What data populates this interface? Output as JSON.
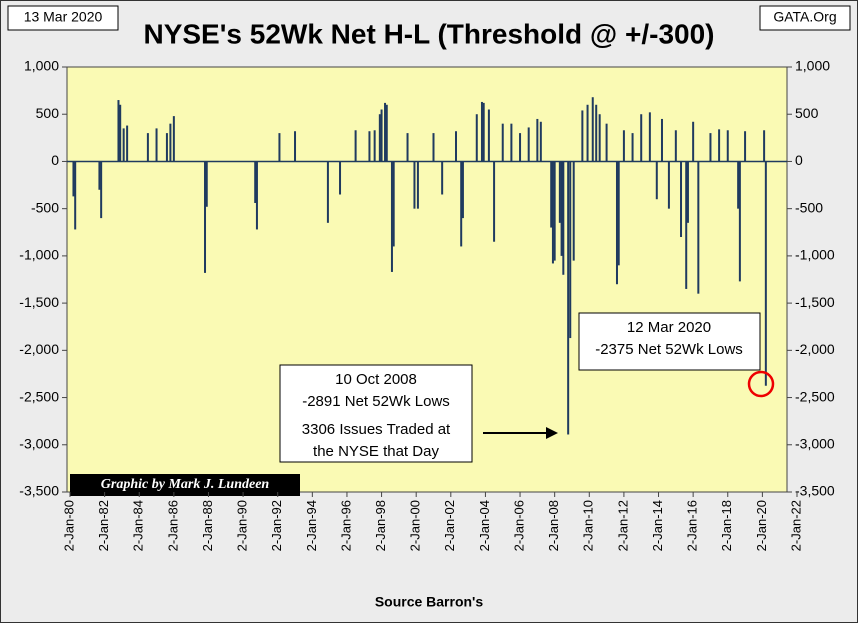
{
  "chart_data": {
    "type": "bar",
    "title": "NYSE's 52Wk Net H-L (Threshold @ +/-300)",
    "date_label": "13 Mar 2020",
    "source_site": "GATA.Org",
    "credit": "Graphic by Mark J. Lundeen",
    "x_label": "Source Barron's",
    "annotations": [
      {
        "lines": [
          "10 Oct 2008",
          "-2891 Net 52Wk Lows",
          "3306 Issues Traded at",
          "the NYSE that Day"
        ]
      },
      {
        "lines": [
          "12 Mar 2020",
          "-2375 Net 52Wk Lows"
        ]
      }
    ],
    "color": "#1f3a5f",
    "background": "#fafab4",
    "x": [
      1980.2,
      1980.3,
      1981.7,
      1981.8,
      1982.8,
      1982.9,
      1983.1,
      1983.3,
      1984.5,
      1985.0,
      1985.6,
      1985.8,
      1986.0,
      1987.8,
      1987.9,
      1990.7,
      1990.8,
      1992.1,
      1993.0,
      1994.9,
      1995.6,
      1996.5,
      1997.3,
      1997.6,
      1997.9,
      1998.0,
      1998.2,
      1998.3,
      1998.6,
      1998.7,
      1999.5,
      1999.9,
      2000.1,
      2001.0,
      2001.5,
      2002.3,
      2002.6,
      2002.7,
      2003.5,
      2003.8,
      2003.9,
      2004.2,
      2004.5,
      2005.0,
      2005.5,
      2006.0,
      2006.5,
      2007.0,
      2007.2,
      2007.8,
      2007.9,
      2008.0,
      2008.3,
      2008.4,
      2008.5,
      2008.78,
      2008.9,
      2009.1,
      2009.6,
      2009.9,
      2010.2,
      2010.4,
      2010.6,
      2011.0,
      2011.6,
      2011.7,
      2012.0,
      2012.5,
      2013.0,
      2013.5,
      2013.9,
      2014.2,
      2014.6,
      2015.0,
      2015.3,
      2015.6,
      2015.7,
      2016.0,
      2016.3,
      2017.0,
      2017.5,
      2018.0,
      2018.6,
      2018.7,
      2019.0,
      2020.1,
      2020.2
    ],
    "values": [
      -370,
      -720,
      -300,
      -600,
      650,
      600,
      350,
      380,
      300,
      350,
      300,
      400,
      480,
      -1180,
      -480,
      -440,
      -720,
      300,
      320,
      -650,
      -350,
      330,
      320,
      330,
      500,
      550,
      620,
      600,
      -1170,
      -900,
      300,
      -500,
      -500,
      300,
      -350,
      320,
      -900,
      -600,
      500,
      630,
      620,
      550,
      -850,
      400,
      400,
      300,
      360,
      450,
      420,
      -700,
      -1080,
      -1050,
      -650,
      -1000,
      -1200,
      -2891,
      -1870,
      -1050,
      540,
      600,
      680,
      600,
      500,
      400,
      -1300,
      -1100,
      330,
      300,
      500,
      520,
      -400,
      450,
      -500,
      330,
      -800,
      -1350,
      -650,
      420,
      -1400,
      300,
      340,
      330,
      -500,
      -1270,
      320,
      330,
      -2375
    ],
    "xlim": [
      1980,
      2022
    ],
    "xticks": [
      {
        "value": 1980,
        "label": "2-Jan-80"
      },
      {
        "value": 1982,
        "label": "2-Jan-82"
      },
      {
        "value": 1984,
        "label": "2-Jan-84"
      },
      {
        "value": 1986,
        "label": "2-Jan-86"
      },
      {
        "value": 1988,
        "label": "2-Jan-88"
      },
      {
        "value": 1990,
        "label": "2-Jan-90"
      },
      {
        "value": 1992,
        "label": "2-Jan-92"
      },
      {
        "value": 1994,
        "label": "2-Jan-94"
      },
      {
        "value": 1996,
        "label": "2-Jan-96"
      },
      {
        "value": 1998,
        "label": "2-Jan-98"
      },
      {
        "value": 2000,
        "label": "2-Jan-00"
      },
      {
        "value": 2002,
        "label": "2-Jan-02"
      },
      {
        "value": 2004,
        "label": "2-Jan-04"
      },
      {
        "value": 2006,
        "label": "2-Jan-06"
      },
      {
        "value": 2008,
        "label": "2-Jan-08"
      },
      {
        "value": 2010,
        "label": "2-Jan-10"
      },
      {
        "value": 2012,
        "label": "2-Jan-12"
      },
      {
        "value": 2014,
        "label": "2-Jan-14"
      },
      {
        "value": 2016,
        "label": "2-Jan-16"
      },
      {
        "value": 2018,
        "label": "2-Jan-18"
      },
      {
        "value": 2020,
        "label": "2-Jan-20"
      },
      {
        "value": 2022,
        "label": "2-Jan-22"
      }
    ],
    "ylim": [
      -3500,
      1000
    ],
    "yticks": [
      {
        "value": 1000,
        "label": "1,000"
      },
      500,
      0,
      -500,
      {
        "value": -1000,
        "label": "-1,000"
      },
      {
        "value": -1500,
        "label": "-1,500"
      },
      {
        "value": -2000,
        "label": "-2,000"
      },
      {
        "value": -2500,
        "label": "-2,500"
      },
      {
        "value": -3000,
        "label": "-3,000"
      },
      {
        "value": -3500,
        "label": "-3,500"
      }
    ],
    "y2lim": [
      -3500,
      1000
    ],
    "y2ticks": [
      {
        "value": 1000,
        "label": "1,000"
      },
      500,
      0,
      -500,
      {
        "value": -1000,
        "label": "-1,000"
      },
      {
        "value": -1500,
        "label": "-1,500"
      },
      {
        "value": -2000,
        "label": "-2,000"
      },
      {
        "value": -2500,
        "label": "-2,500"
      },
      {
        "value": -3000,
        "label": "-3,000"
      },
      {
        "value": -3500,
        "label": "-3,500"
      }
    ]
  }
}
